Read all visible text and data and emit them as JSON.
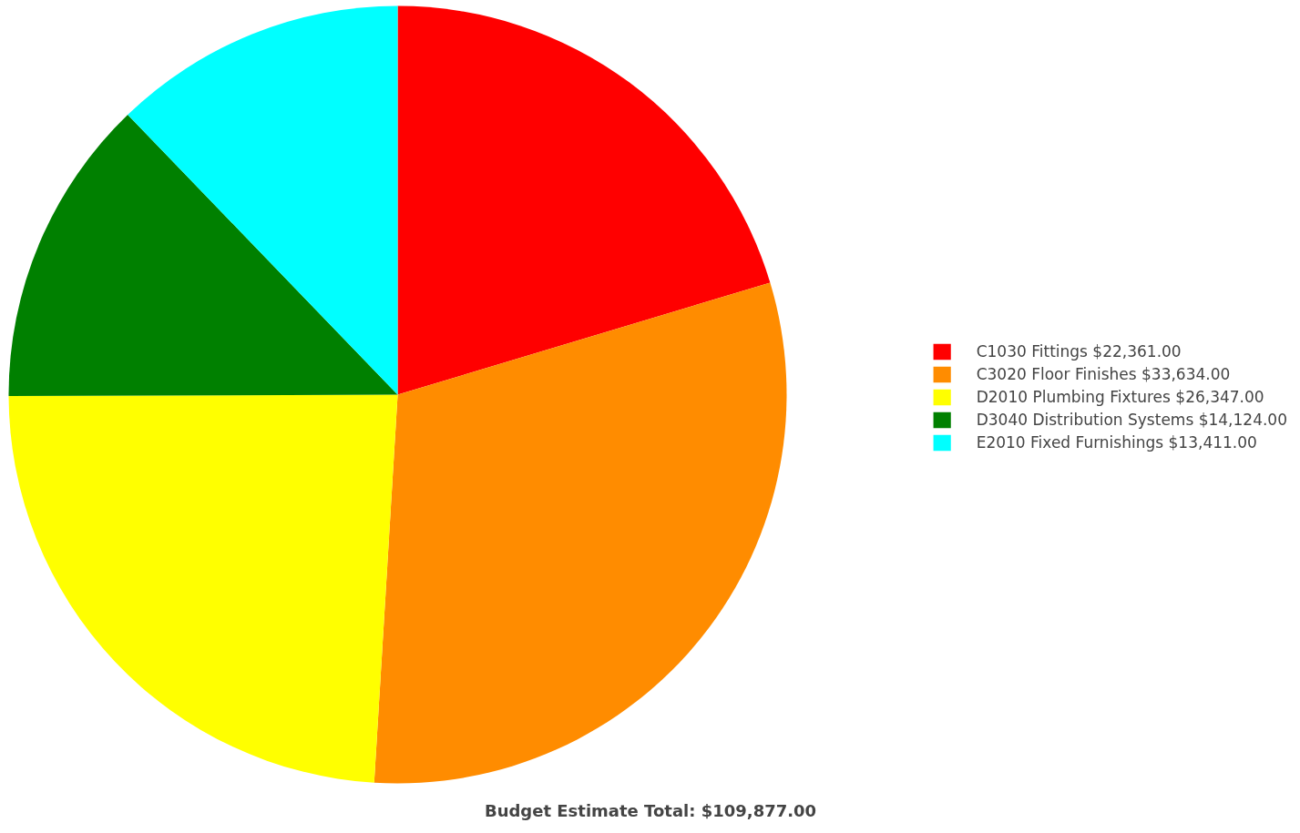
{
  "chart_data": {
    "type": "pie",
    "title": "Budget Estimate Total: $109,877.00",
    "categories": [
      "C1030 Fittings",
      "C3020 Floor Finishes",
      "D2010 Plumbing Fixtures",
      "D3040 Distribution Systems",
      "E2010 Fixed Furnishings"
    ],
    "values": [
      22361,
      33634,
      26347,
      14124,
      13411
    ],
    "value_labels": [
      "$22,361.00",
      "$33,634.00",
      "$26,347.00",
      "$14,124.00",
      "$13,411.00"
    ],
    "colors": [
      "#ff0000",
      "#ff8c00",
      "#ffff00",
      "#008000",
      "#00ffff"
    ],
    "legend": "right"
  }
}
